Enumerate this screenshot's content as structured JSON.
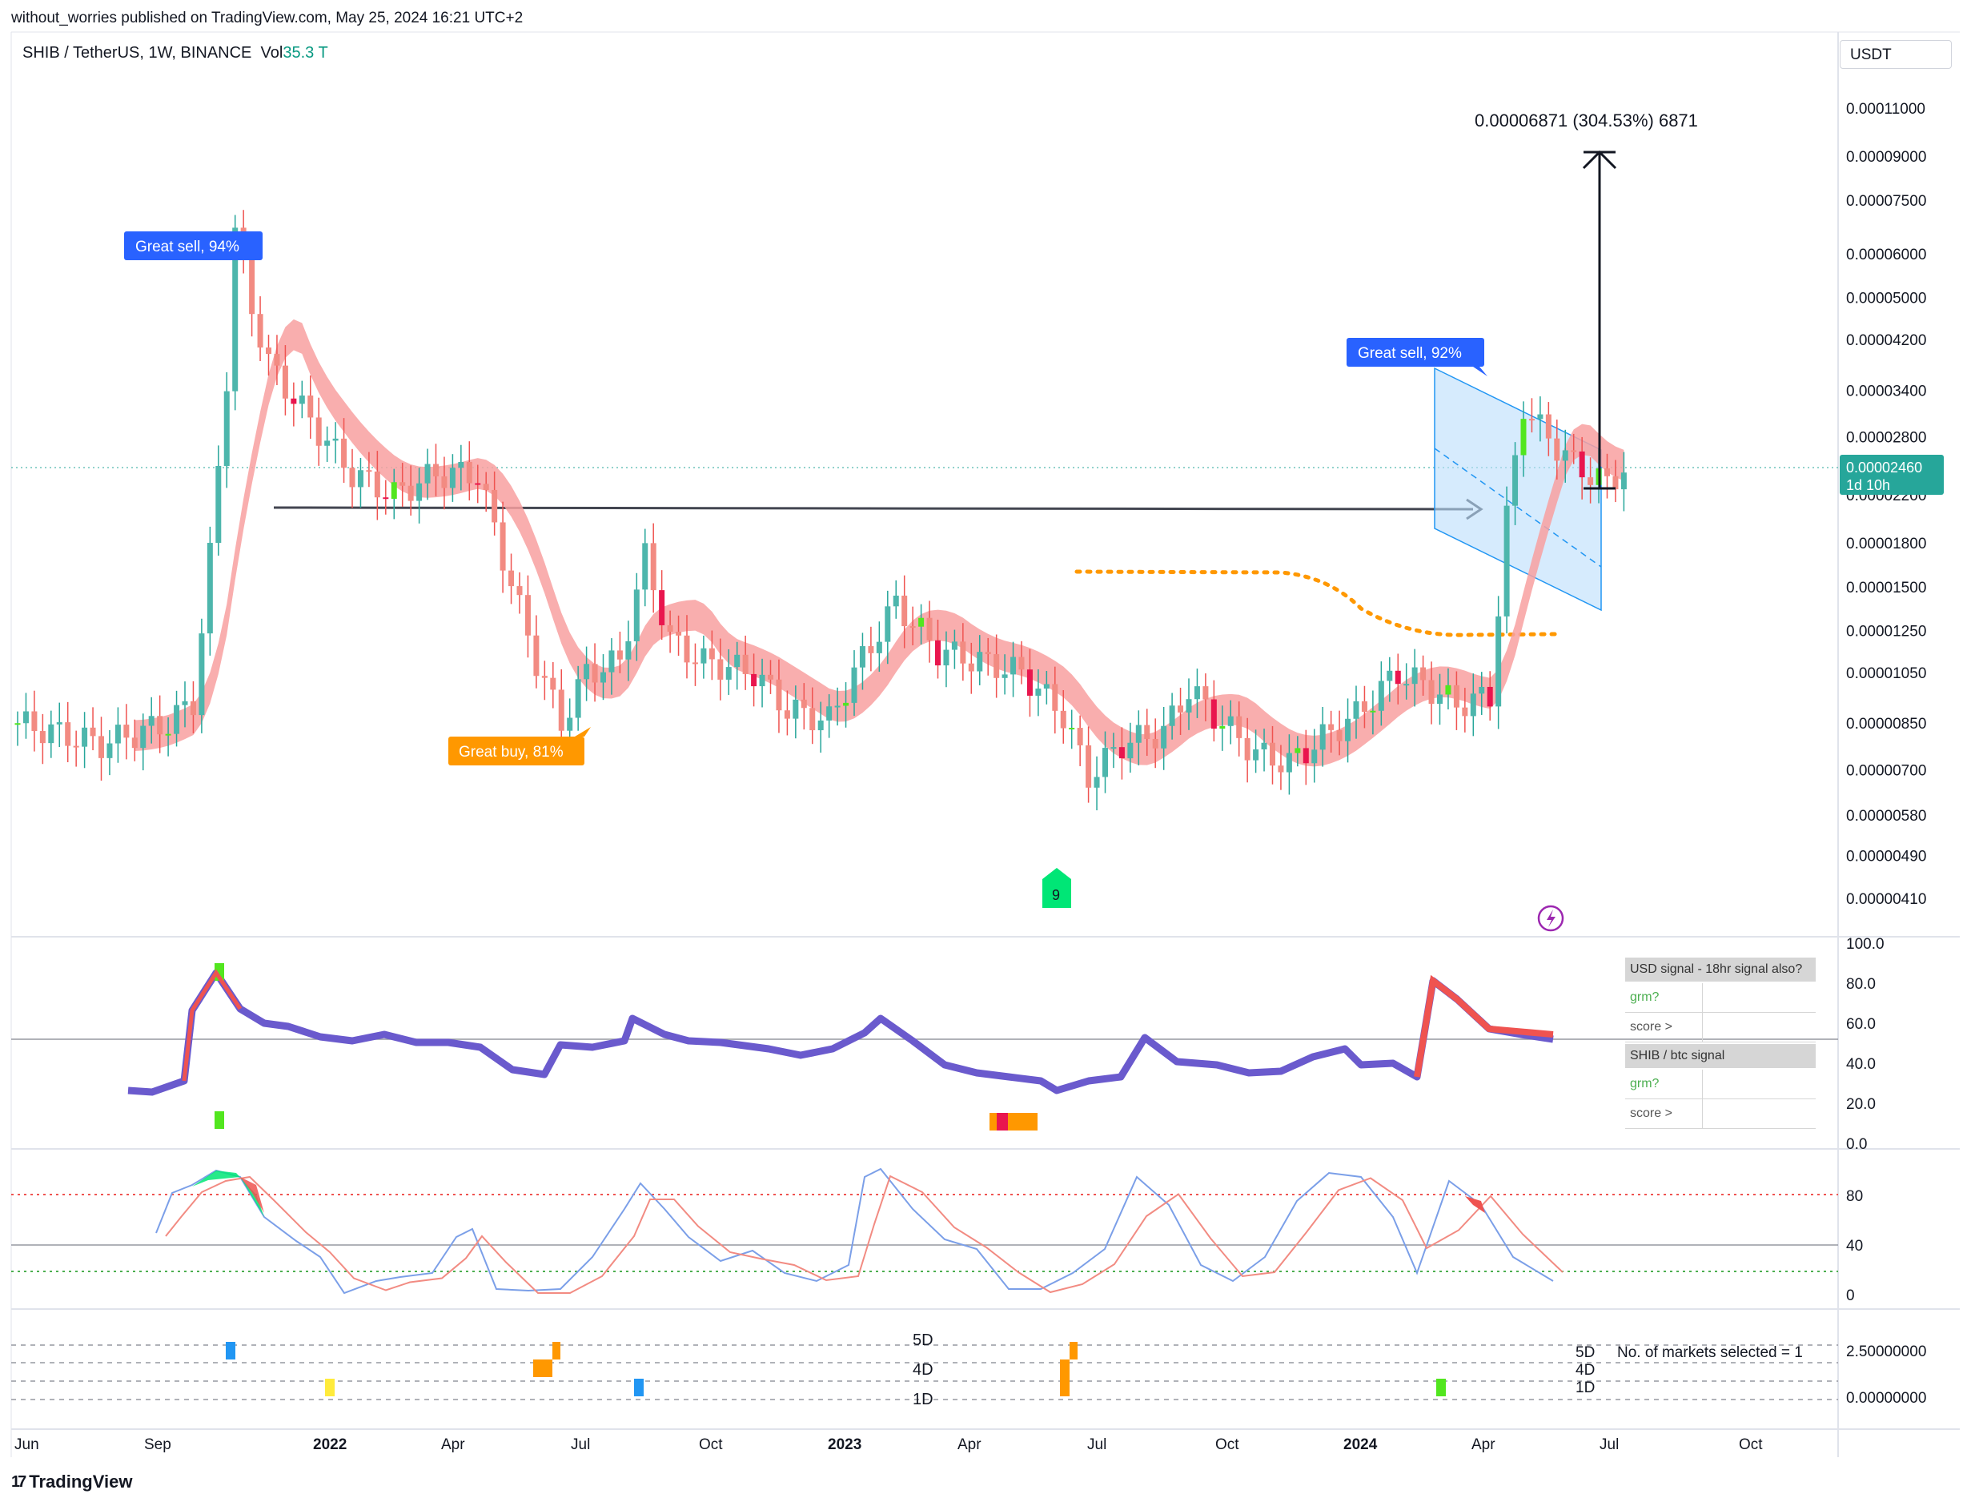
{
  "publisher": "without_worries published on TradingView.com, May 25, 2024 16:21 UTC+2",
  "symbol": {
    "pair": "SHIB / TetherUS, 1W, BINANCE",
    "vol_label": "Vol",
    "vol_value": "35.3 T"
  },
  "currency": "USDT",
  "footer": {
    "logo_mark": "17",
    "logo_text": "TradingView"
  },
  "colors": {
    "up": "#26a69a",
    "down": "#ef5350",
    "bright_up": "#52e61f",
    "bright_down": "#e9164e",
    "accent_blue": "#2962ff",
    "orange": "#ff9800"
  },
  "chart_data": [
    {
      "type": "candlestick",
      "scale": "log",
      "y_ticks": [
        "0.00011000",
        "0.00009000",
        "0.00007500",
        "0.00006000",
        "0.00005000",
        "0.00004200",
        "0.00003400",
        "0.00002800",
        "0.00002200",
        "0.00001800",
        "0.00001500",
        "0.00001250",
        "0.00001050",
        "0.00000850",
        "0.00000700",
        "0.00000580",
        "0.00000490",
        "0.00000410"
      ],
      "y_tick_values": [
        0.00011,
        9e-05,
        7.5e-05,
        6e-05,
        5e-05,
        4.2e-05,
        3.4e-05,
        2.8e-05,
        2.2e-05,
        1.8e-05,
        1.5e-05,
        1.25e-05,
        1.05e-05,
        8.5e-06,
        7e-06,
        5.8e-06,
        4.9e-06,
        4.1e-06
      ],
      "x_labels": [
        {
          "label": "Jun",
          "bold": false
        },
        {
          "label": "Sep",
          "bold": false
        },
        {
          "label": "2022",
          "bold": true
        },
        {
          "label": "Apr",
          "bold": false
        },
        {
          "label": "Jul",
          "bold": false
        },
        {
          "label": "Oct",
          "bold": false
        },
        {
          "label": "2023",
          "bold": true
        },
        {
          "label": "Apr",
          "bold": false
        },
        {
          "label": "Jul",
          "bold": false
        },
        {
          "label": "Oct",
          "bold": false
        },
        {
          "label": "2024",
          "bold": true
        },
        {
          "label": "Apr",
          "bold": false
        },
        {
          "label": "Jul",
          "bold": false
        },
        {
          "label": "Oct",
          "bold": false
        }
      ],
      "last_price": "0.00002460",
      "countdown": "1d 10h",
      "measure_label": "0.00006871 (304.53%) 6871",
      "annotations": [
        {
          "text": "Great sell, 94%",
          "type": "sell"
        },
        {
          "text": "Great sell, 92%",
          "type": "sell"
        },
        {
          "text": "Great buy,  81%",
          "type": "buy"
        },
        {
          "text": "9",
          "type": "count"
        }
      ]
    },
    {
      "type": "line",
      "name_table": {
        "header1": "USD signal - 18hr signal also?",
        "row_grm": "grm?",
        "row_score": "score >",
        "header2": "SHIB / btc signal"
      },
      "y_ticks": [
        "100.0",
        "80.0",
        "60.0",
        "40.0",
        "20.0",
        "0.0"
      ],
      "y_tick_values": [
        100,
        80,
        60,
        40,
        20,
        0
      ]
    },
    {
      "type": "line",
      "y_ticks": [
        "80",
        "40",
        "0"
      ],
      "y_tick_values": [
        80,
        40,
        0
      ],
      "series_count": 2
    },
    {
      "type": "heatmap",
      "row_labels": [
        "5D",
        "4D",
        "1D"
      ],
      "right_labels": [
        "5D",
        "4D",
        "1D"
      ],
      "note": "No. of markets selected = 1",
      "y_ticks": [
        "2.50000000",
        "0.00000000"
      ]
    }
  ]
}
